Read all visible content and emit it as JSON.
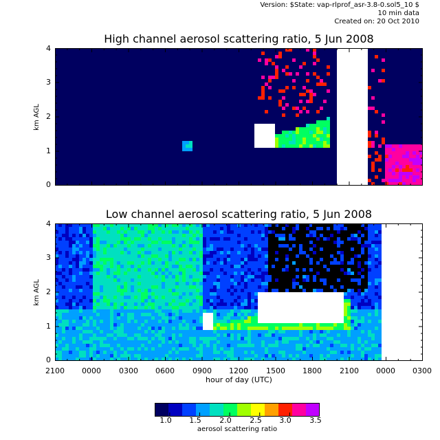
{
  "meta": {
    "version": "Version: $State: vap-rlprof_asr-3.8-0.sol5_10 $",
    "resolution": "10 min data",
    "created": "Created on: 20 Oct 2010"
  },
  "chart_data": [
    {
      "type": "heatmap",
      "title": "High channel aerosol scattering ratio, 5 Jun 2008",
      "ylabel": "km AGL",
      "xlabel": "",
      "ylim": [
        0,
        4
      ],
      "yticks": [
        "4",
        "3",
        "2",
        "1",
        "0"
      ],
      "xticks": [],
      "features": [
        {
          "kind": "background",
          "value": 0.0,
          "color": "#000000"
        },
        {
          "kind": "plume",
          "t_start": 10.5,
          "t_end": 11.2,
          "z_low": 1.0,
          "z_high": 1.3,
          "value": 1.6
        },
        {
          "kind": "aerosol_layer",
          "t_start": 16.5,
          "t_end": 22.5,
          "z_base": 1.1,
          "z_top_start": 1.3,
          "z_top_end": 2.0,
          "value": 2.0
        },
        {
          "kind": "cloud",
          "t_start": 16.3,
          "t_end": 18.0,
          "z_low": 1.1,
          "z_high": 1.8,
          "value": 3.5
        },
        {
          "kind": "cloud_streaks",
          "t_start": 16.5,
          "t_end": 22.5,
          "z_low": 2.0,
          "z_high": 4.0,
          "value": 3.0
        },
        {
          "kind": "cloud",
          "t_start": 23.0,
          "t_end": 25.5,
          "z_low": 0.0,
          "z_high": 4.0,
          "value": 3.5
        },
        {
          "kind": "cloud_streaks",
          "t_start": 25.5,
          "t_end": 27.0,
          "z_low": 0.0,
          "z_high": 4.0,
          "value": 3.0
        },
        {
          "kind": "surface",
          "t_start": 27.0,
          "t_end": 30.0,
          "z_low": 0.0,
          "z_high": 1.2,
          "value": 3.2
        }
      ]
    },
    {
      "type": "heatmap",
      "title": "Low channel aerosol scattering ratio, 5 Jun 2008",
      "ylabel": "km AGL",
      "xlabel": "hour of day (UTC)",
      "ylim": [
        0,
        4
      ],
      "yticks": [
        "4",
        "3",
        "2",
        "1",
        "0"
      ],
      "xticks": [
        "2100",
        "0000",
        "0300",
        "0600",
        "0900",
        "1200",
        "1500",
        "1800",
        "2100",
        "0000",
        "0300"
      ],
      "x_hours": [
        0,
        3,
        6,
        9,
        12,
        15,
        18,
        21,
        24,
        27,
        30
      ],
      "features": [
        {
          "kind": "background",
          "value": 1.3
        },
        {
          "kind": "boundary_layer",
          "t_start": 0.0,
          "t_end": 27.0,
          "z_low": 0.0,
          "z_high": 1.5,
          "value": 1.6
        },
        {
          "kind": "residual_layer",
          "t_start": 3.0,
          "t_end": 12.0,
          "z_low": 1.5,
          "z_high": 4.0,
          "value": 1.8
        },
        {
          "kind": "aerosol_layer",
          "t_start": 12.0,
          "t_end": 24.0,
          "z_base": 0.9,
          "z_top_start": 1.0,
          "z_top_end": 1.8,
          "value": 2.1
        },
        {
          "kind": "cloud",
          "t_start": 12.0,
          "t_end": 13.0,
          "z_low": 0.9,
          "z_high": 1.4,
          "value": 3.5
        },
        {
          "kind": "cloud",
          "t_start": 16.5,
          "t_end": 23.5,
          "z_low": 1.1,
          "z_high": 2.0,
          "value": 3.5
        },
        {
          "kind": "no_data",
          "t_start": 17.5,
          "t_end": 25.5,
          "z_low": 2.0,
          "z_high": 4.0
        },
        {
          "kind": "cloud",
          "t_start": 26.5,
          "t_end": 30.0,
          "z_low": 0.0,
          "z_high": 4.0,
          "value": 3.5
        }
      ]
    }
  ],
  "colorbar": {
    "label": "aerosol scattering ratio",
    "min": 0.75,
    "max": 3.5,
    "ticks": [
      "1.0",
      "1.5",
      "2.0",
      "2.5",
      "3.0",
      "3.5"
    ],
    "tick_values": [
      1.0,
      1.5,
      2.0,
      2.5,
      3.0,
      3.5
    ],
    "colors": [
      "#000060",
      "#0000c0",
      "#0040ff",
      "#00a0ff",
      "#00e0c0",
      "#00ff60",
      "#a0ff00",
      "#ffff00",
      "#ffa000",
      "#ff2000",
      "#ff00a0",
      "#c000ff"
    ]
  }
}
